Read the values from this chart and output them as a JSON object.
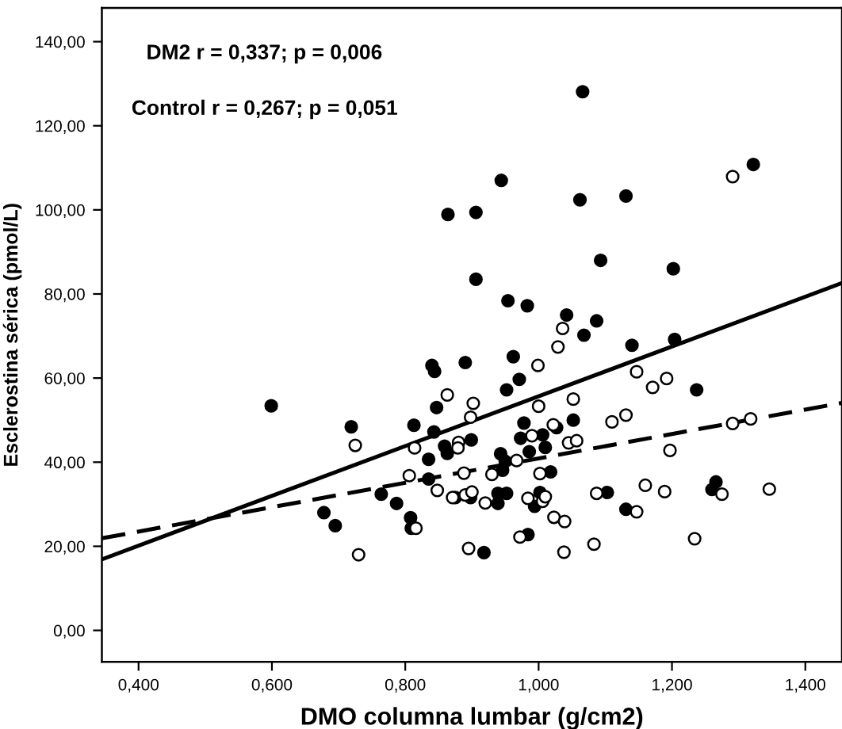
{
  "chart_data": {
    "type": "scatter",
    "xlabel": "DMO columna lumbar (g/cm2)",
    "ylabel": "Esclerostina sérica (pmol/L)",
    "annotations": [
      "DM2 r = 0,337; p = 0,006",
      "Control r = 0,267; p = 0,051"
    ],
    "xlim": [
      0.345,
      1.455
    ],
    "ylim": [
      -7.5,
      148
    ],
    "xticks": [
      {
        "value": 0.4,
        "label": "0,400"
      },
      {
        "value": 0.6,
        "label": "0,600"
      },
      {
        "value": 0.8,
        "label": "0,800"
      },
      {
        "value": 1.0,
        "label": "1,000"
      },
      {
        "value": 1.2,
        "label": "1,200"
      },
      {
        "value": 1.4,
        "label": "1,400"
      }
    ],
    "yticks": [
      {
        "value": 0,
        "label": "0,00"
      },
      {
        "value": 20,
        "label": "20,00"
      },
      {
        "value": 40,
        "label": "40,00"
      },
      {
        "value": 60,
        "label": "60,00"
      },
      {
        "value": 80,
        "label": "80,00"
      },
      {
        "value": 100,
        "label": "100,00"
      },
      {
        "value": 120,
        "label": "120,00"
      },
      {
        "value": 140,
        "label": "140,00"
      }
    ],
    "grid": false,
    "legend": false,
    "series": [
      {
        "marker": "circle",
        "color": "#000000",
        "x": [
          0.944,
          0.864,
          0.906,
          0.906,
          0.954,
          0.983,
          1.042,
          0.84,
          0.844,
          0.89,
          0.962,
          0.971,
          0.952,
          0.847,
          0.599,
          1.322,
          1.062,
          1.131,
          1.093,
          1.202,
          1.087,
          1.068,
          1.14,
          1.204,
          1.237,
          0.719,
          0.813,
          0.843,
          0.859,
          0.863,
          0.899,
          0.835,
          0.835,
          0.764,
          0.787,
          0.678,
          0.695,
          0.808,
          0.809,
          0.875,
          0.898,
          0.939,
          0.952,
          0.939,
          0.943,
          0.95,
          0.946,
          0.978,
          0.973,
          0.986,
          1.006,
          1.01,
          1.027,
          1.018,
          1.002,
          0.994,
          0.984,
          0.918,
          1.052,
          1.103,
          1.131,
          1.266,
          1.26,
          1.066
        ],
        "values": [
          107.0,
          98.9,
          99.4,
          83.5,
          78.4,
          77.2,
          75.0,
          63.0,
          61.6,
          63.7,
          65.1,
          59.7,
          57.2,
          53.0,
          53.4,
          110.8,
          102.4,
          103.3,
          88.0,
          86.0,
          73.6,
          70.2,
          67.8,
          69.2,
          57.2,
          48.4,
          48.8,
          47.2,
          43.8,
          42.1,
          45.3,
          40.7,
          36.0,
          32.4,
          30.2,
          28.0,
          24.9,
          26.8,
          24.3,
          31.6,
          31.6,
          32.6,
          32.6,
          30.2,
          42.0,
          40.2,
          38.1,
          49.3,
          45.7,
          42.5,
          46.5,
          43.5,
          48.2,
          37.7,
          32.8,
          29.5,
          22.8,
          18.5,
          50.0,
          32.8,
          28.8,
          35.3,
          33.5,
          128.1
        ]
      },
      {
        "marker": "circle",
        "color": "#ffffff",
        "x": [
          1.036,
          1.029,
          0.999,
          0.863,
          0.902,
          1.0,
          1.291,
          1.147,
          1.171,
          1.192,
          1.052,
          0.898,
          0.725,
          0.814,
          0.88,
          0.879,
          0.99,
          1.022,
          1.045,
          0.806,
          0.848,
          0.888,
          0.967,
          0.93,
          1.002,
          0.871,
          0.89,
          0.9,
          0.92,
          0.984,
          1.006,
          1.01,
          1.023,
          1.039,
          0.816,
          0.972,
          0.895,
          1.038,
          0.73,
          1.11,
          1.131,
          1.057,
          1.291,
          1.318,
          1.197,
          1.087,
          1.16,
          1.189,
          1.275,
          1.346,
          1.147,
          1.234,
          1.083
        ],
        "values": [
          71.8,
          67.4,
          63.0,
          56.0,
          54.0,
          53.3,
          107.9,
          61.5,
          57.8,
          59.9,
          55.0,
          50.7,
          44.0,
          43.4,
          44.7,
          43.4,
          46.3,
          48.9,
          44.6,
          36.8,
          33.3,
          37.4,
          40.4,
          37.1,
          37.3,
          31.6,
          32.2,
          32.9,
          30.3,
          31.4,
          30.7,
          31.8,
          26.9,
          25.9,
          24.3,
          22.2,
          19.5,
          18.6,
          18.0,
          49.6,
          51.2,
          45.1,
          49.2,
          50.3,
          42.8,
          32.6,
          34.5,
          33.0,
          32.4,
          33.6,
          28.2,
          21.8,
          20.5
        ]
      },
      {
        "type": "line",
        "color": "#000000",
        "line_style": "solid",
        "x": [
          0.345,
          1.455
        ],
        "values": [
          16.9,
          82.6
        ]
      },
      {
        "type": "line",
        "color": "#000000",
        "line_style": "dashed",
        "x": [
          0.345,
          1.455
        ],
        "values": [
          21.9,
          54.1
        ]
      }
    ]
  }
}
